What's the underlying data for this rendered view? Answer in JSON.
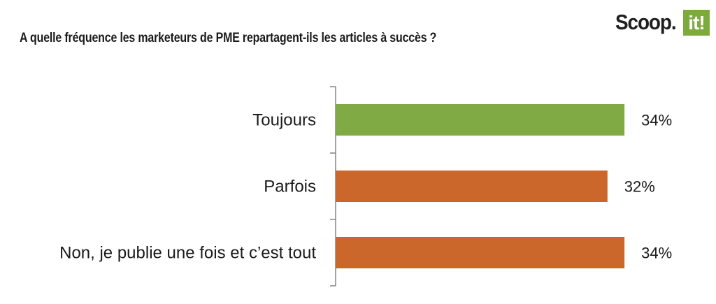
{
  "logo": {
    "text": "Scoop.",
    "badge": "it!",
    "badge_color": "#7daa3c"
  },
  "chart_data": {
    "type": "bar",
    "orientation": "horizontal",
    "title": "A quelle fréquence les marketeurs de PME repartagent-ils les articles à succès ?",
    "categories": [
      "Toujours",
      "Parfois",
      "Non, je publie une fois et c’est tout"
    ],
    "values": [
      34,
      32,
      34
    ],
    "value_labels": [
      "34%",
      "32%",
      "34%"
    ],
    "colors": [
      "#80aa43",
      "#cc672c",
      "#cc672c"
    ],
    "xlim": [
      0,
      40
    ],
    "grid": false,
    "legend": "none"
  }
}
